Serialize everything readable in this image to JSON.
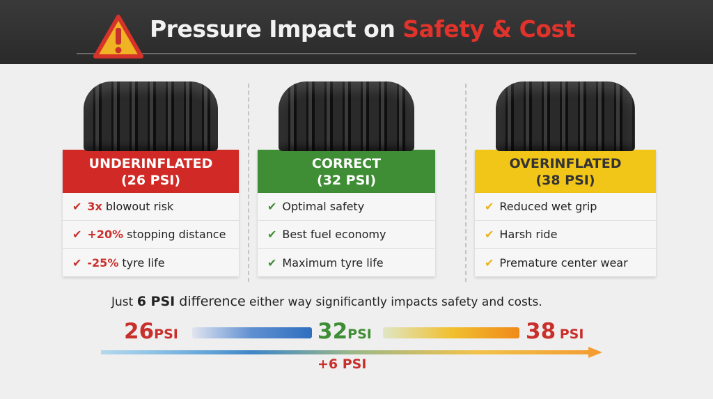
{
  "title": {
    "prefix": "Pressure Impact on ",
    "accent": "Safety & Cost",
    "icon": "warning-triangle-icon"
  },
  "cards": [
    {
      "label": "UNDERINFLATED",
      "psi": "(26 PSI)",
      "color": "#d12a26",
      "check_color": "#c9302c",
      "items": [
        {
          "hl": "3x",
          "text": "blowout risk"
        },
        {
          "hl": "+20%",
          "text": "stopping distance"
        },
        {
          "hl": "-25%",
          "text": "tyre life"
        }
      ]
    },
    {
      "label": "CORRECT",
      "psi": "(32 PSI)",
      "color": "#3f8d34",
      "check_color": "#3f8d34",
      "items": [
        {
          "hl": "",
          "text": "Optimal safety"
        },
        {
          "hl": "",
          "text": "Best fuel economy"
        },
        {
          "hl": "",
          "text": "Maximum tyre life"
        }
      ]
    },
    {
      "label": "OVERINFLATED",
      "psi": "(38 PSI)",
      "color": "#f2c619",
      "check_color": "#e8b31a",
      "items": [
        {
          "hl": "",
          "text": "Reduced wet grip"
        },
        {
          "hl": "",
          "text": "Harsh ride"
        },
        {
          "hl": "",
          "text": "Premature center wear"
        }
      ]
    }
  ],
  "note": {
    "pre": "Just ",
    "bold": "6 PSI",
    "mid": " difference",
    "rest": " either way significantly impacts safety and costs."
  },
  "scale": {
    "low": {
      "n": "26",
      "u": "PSI",
      "color": "#c9302c"
    },
    "mid": {
      "n": "32",
      "u": "PSI",
      "color": "#3f8d34"
    },
    "high": {
      "n": "38",
      "u": "PSI",
      "color": "#c9302c"
    },
    "delta": "+6 PSI"
  }
}
